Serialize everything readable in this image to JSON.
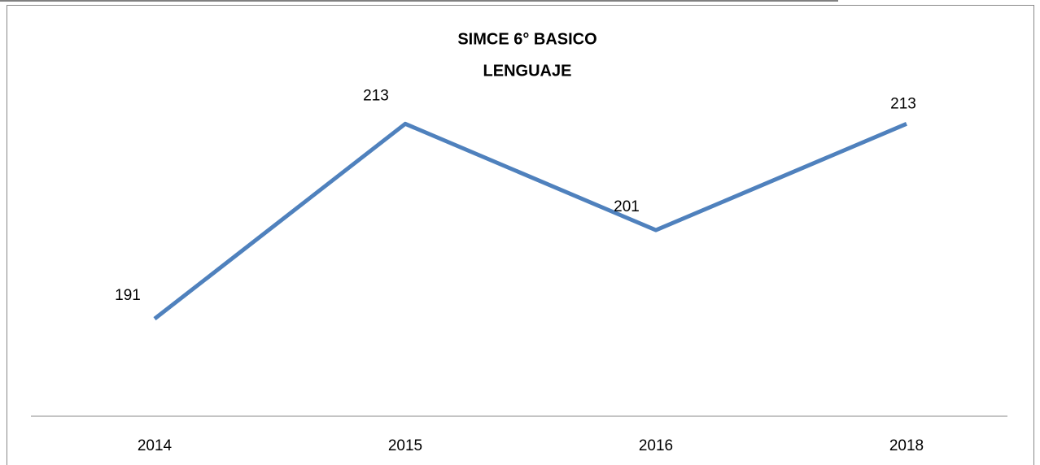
{
  "chart_data": {
    "type": "line",
    "title": [
      "SIMCE 6° BASICO",
      "LENGUAJE"
    ],
    "categories": [
      "2014",
      "2015",
      "2016",
      "2018"
    ],
    "values": [
      191,
      213,
      201,
      213
    ],
    "color": "#4f81bd",
    "ylim": [
      180,
      220
    ]
  }
}
